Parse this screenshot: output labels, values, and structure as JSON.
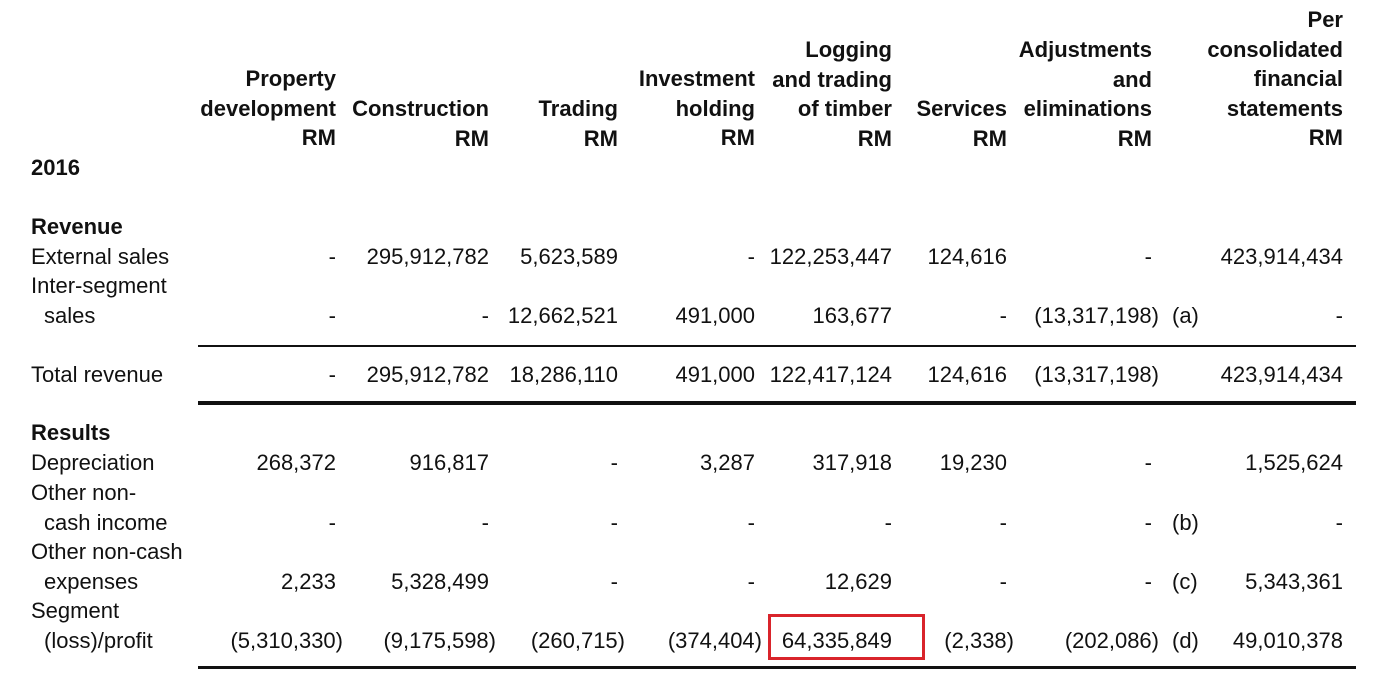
{
  "year": "2016",
  "columns": [
    "Property\ndevelopment\nRM",
    "Construction\nRM",
    "Trading\nRM",
    "Investment\nholding\nRM",
    "Logging\nand trading\nof timber\nRM",
    "Services\nRM",
    "Adjustments\nand\neliminations\nRM",
    "Per\nconsolidated\nfinancial\nstatements\nRM"
  ],
  "sections": {
    "revenue": "Revenue",
    "results": "Results"
  },
  "rows": {
    "external_sales": {
      "label": [
        "External sales"
      ],
      "values": [
        "-",
        "295,912,782",
        "5,623,589",
        "-",
        "122,253,447",
        "124,616",
        "-",
        "423,914,434"
      ],
      "note": ""
    },
    "inter_segment": {
      "label": [
        "Inter-segment",
        "sales"
      ],
      "values": [
        "-",
        "-",
        "12,662,521",
        "491,000",
        "163,677",
        "-",
        "(13,317,198)",
        "-"
      ],
      "note": "(a)"
    },
    "total_revenue": {
      "label": [
        "Total revenue"
      ],
      "values": [
        "-",
        "295,912,782",
        "18,286,110",
        "491,000",
        "122,417,124",
        "124,616",
        "(13,317,198)",
        "423,914,434"
      ],
      "note": ""
    },
    "depreciation": {
      "label": [
        "Depreciation"
      ],
      "values": [
        "268,372",
        "916,817",
        "-",
        "3,287",
        "317,918",
        "19,230",
        "-",
        "1,525,624"
      ],
      "note": ""
    },
    "non_cash_income": {
      "label": [
        "Other non-",
        "cash income"
      ],
      "values": [
        "-",
        "-",
        "-",
        "-",
        "-",
        "-",
        "-",
        "-"
      ],
      "note": "(b)"
    },
    "non_cash_expenses": {
      "label": [
        "Other non-cash",
        "expenses"
      ],
      "values": [
        "2,233",
        "5,328,499",
        "-",
        "-",
        "12,629",
        "-",
        "-",
        "5,343,361"
      ],
      "note": "(c)"
    },
    "segment_profit": {
      "label": [
        "Segment",
        "(loss)/profit"
      ],
      "values": [
        "(5,310,330)",
        "(9,175,598)",
        "(260,715)",
        "(374,404)",
        "64,335,849",
        "(2,338)",
        "(202,086)",
        "49,010,378"
      ],
      "note": "(d)"
    }
  },
  "highlight": {
    "row": "segment_profit",
    "column": 4,
    "color": "#d9242b"
  }
}
